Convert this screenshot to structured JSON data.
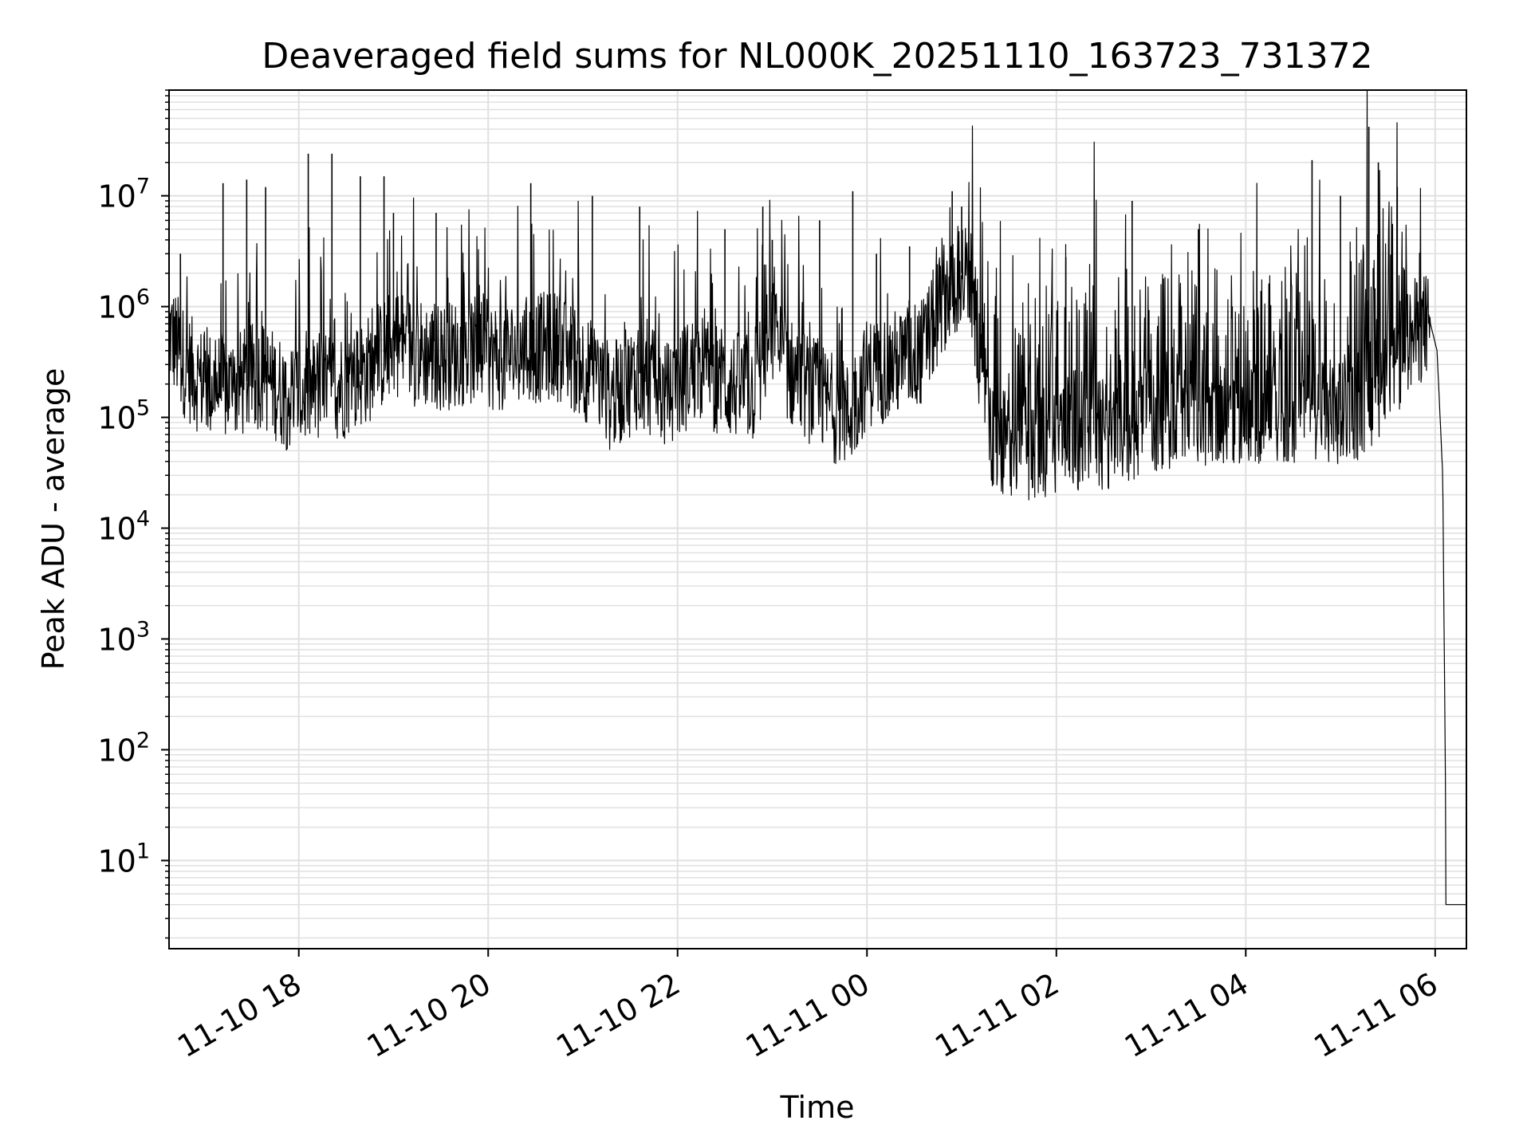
{
  "chart_data": {
    "type": "line",
    "title": "Deaveraged field sums for NL000K_20251110_163723_731372",
    "xlabel": "Time",
    "ylabel": "Peak ADU - average",
    "yscale": "log",
    "ylim": [
      1.6,
      90000000
    ],
    "xlim_hours_from_2025_11_10_00": [
      16.63,
      30.33
    ],
    "grid": "on",
    "line_color": "#000000",
    "grid_color": "#e0e0e0",
    "x_ticks": [
      {
        "label": "11-10 18",
        "hour": 18
      },
      {
        "label": "11-10 20",
        "hour": 20
      },
      {
        "label": "11-10 22",
        "hour": 22
      },
      {
        "label": "11-11 00",
        "hour": 24
      },
      {
        "label": "11-11 02",
        "hour": 26
      },
      {
        "label": "11-11 04",
        "hour": 28
      },
      {
        "label": "11-11 06",
        "hour": 30
      }
    ],
    "y_ticks": [
      {
        "base": "10",
        "exp": "1",
        "value": 10
      },
      {
        "base": "10",
        "exp": "2",
        "value": 100
      },
      {
        "base": "10",
        "exp": "3",
        "value": 1000
      },
      {
        "base": "10",
        "exp": "4",
        "value": 10000
      },
      {
        "base": "10",
        "exp": "5",
        "value": 100000
      },
      {
        "base": "10",
        "exp": "6",
        "value": 1000000
      },
      {
        "base": "10",
        "exp": "7",
        "value": 10000000
      }
    ],
    "series": [
      {
        "name": "Peak ADU - average",
        "note": "dense noisy series (approx. envelope readings; x in hours since 2025-11-10 00:00)",
        "x": [
          16.63,
          16.8,
          17.0,
          17.3,
          17.6,
          17.9,
          18.2,
          18.5,
          18.8,
          19.0,
          19.2,
          19.5,
          19.8,
          20.1,
          20.4,
          20.7,
          21.0,
          21.3,
          21.6,
          21.9,
          22.2,
          22.5,
          22.8,
          23.0,
          23.2,
          23.5,
          23.8,
          24.0,
          24.3,
          24.6,
          24.8,
          25.0,
          25.1,
          25.3,
          25.6,
          25.9,
          26.2,
          26.5,
          26.8,
          27.1,
          27.4,
          27.7,
          28.0,
          28.3,
          28.6,
          28.9,
          29.2,
          29.5,
          29.8,
          29.95,
          30.02,
          30.08,
          30.12,
          30.33
        ],
        "y": [
          600000,
          300000,
          200000,
          180000,
          250000,
          150000,
          180000,
          200000,
          300000,
          500000,
          400000,
          350000,
          400000,
          350000,
          400000,
          450000,
          300000,
          150000,
          250000,
          150000,
          300000,
          200000,
          180000,
          600000,
          250000,
          150000,
          100000,
          250000,
          300000,
          400000,
          1200000,
          2000000,
          1500000,
          60000,
          55000,
          60000,
          65000,
          70000,
          80000,
          100000,
          110000,
          120000,
          120000,
          110000,
          120000,
          110000,
          130000,
          250000,
          600000,
          700000,
          400000,
          30000,
          4,
          4
        ]
      }
    ],
    "spikes": {
      "x": [
        16.75,
        17.2,
        17.45,
        17.65,
        18.1,
        18.35,
        18.65,
        18.9,
        19.0,
        19.45,
        20.45,
        21.1,
        21.6,
        22.5,
        22.9,
        23.0,
        23.5,
        23.85,
        24.1,
        24.45,
        24.9,
        25.0,
        26.1,
        26.8,
        27.5,
        28.7,
        29.0,
        29.3,
        29.4,
        29.6,
        29.85
      ],
      "y": [
        3000000,
        13000000,
        14000000,
        12000000,
        24000000,
        24000000,
        15000000,
        15000000,
        7000000,
        7000000,
        13000000,
        10000000,
        8000000,
        5000000,
        8000000,
        4000000,
        6000000,
        11000000,
        3000000,
        3500000,
        11000000,
        8000000,
        2800000,
        9000000,
        5000000,
        21000000,
        10000000,
        42000000,
        20000000,
        12000000,
        1200000
      ]
    }
  }
}
